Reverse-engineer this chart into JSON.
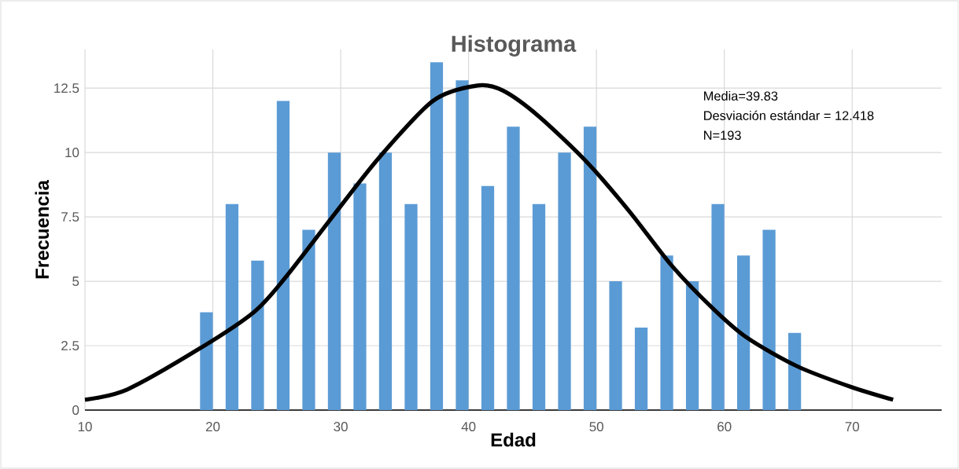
{
  "chart_data": {
    "type": "bar",
    "title": "Histograma",
    "xlabel": "Edad",
    "ylabel": "Frecuencia",
    "x": [
      19.5,
      21.5,
      23.5,
      25.5,
      27.5,
      29.5,
      31.5,
      33.5,
      35.5,
      37.5,
      39.5,
      41.5,
      43.5,
      45.5,
      47.5,
      49.5,
      51.5,
      53.5,
      55.5,
      57.5,
      59.5,
      61.5,
      63.5,
      65.5
    ],
    "series": [
      {
        "color": "#5b9bd5",
        "values": [
          3.8,
          8,
          5.8,
          12,
          7,
          10,
          8.8,
          10,
          8,
          13.5,
          12.8,
          8.7,
          11,
          8,
          10,
          11,
          5,
          3.2,
          6,
          5,
          8,
          6,
          7,
          3
        ]
      },
      {
        "type": "line",
        "color": "#000000",
        "x": [
          10,
          13.3,
          19.0,
          23.2,
          25.6,
          29.5,
          33.0,
          37.2,
          40.7,
          42.7,
          45.5,
          49.3,
          52.6,
          55.9,
          59.2,
          61.8,
          65.7,
          69.9,
          73.2
        ],
        "values": [
          0.4,
          0.8,
          2.4,
          3.8,
          5.1,
          7.6,
          9.8,
          12.0,
          12.6,
          12.4,
          11.4,
          9.6,
          7.7,
          5.6,
          3.9,
          2.8,
          1.7,
          0.9,
          0.4
        ]
      }
    ],
    "xlim": [
      10,
      77
    ],
    "ylim": [
      0,
      14
    ],
    "xticks": [
      10,
      20,
      30,
      40,
      50,
      60,
      70
    ],
    "yticks": [
      0,
      2.5,
      5,
      7.5,
      10,
      12.5
    ],
    "grid": true,
    "annotations": [
      "Media=39.83",
      "Desviación estándar = 12.418",
      "N=193"
    ]
  }
}
